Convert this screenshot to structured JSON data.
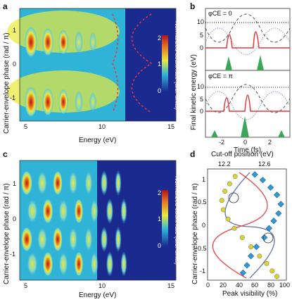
{
  "panels": {
    "a": {
      "letter": "a",
      "cbar_label": "Normalized count rate (arb. units)",
      "cbar_ticks": [
        "0",
        "1",
        "2"
      ],
      "xlabel": "Energy (eV)",
      "ylabel": "Carrier-envelope phase (rad / π)",
      "xticks": [
        "5",
        "10",
        "15"
      ],
      "yticks": [
        "1",
        "0",
        "-1"
      ]
    },
    "b": {
      "letter": "b",
      "ylabel": "Final kinetic energy (eV)",
      "xlabel": "Time (fs)",
      "xticks": [
        "-2",
        "0",
        "2"
      ],
      "yticks_top": [
        "10",
        "5",
        "0"
      ],
      "yticks_bottom": [
        "10",
        "5",
        "0"
      ],
      "phi_top": "φCE = 0",
      "phi_bottom": "φCE = π"
    },
    "c": {
      "letter": "c",
      "cbar_label": "Normalized count rate (arb. units)",
      "cbar_ticks": [
        "0",
        "1",
        "2"
      ],
      "xlabel": "Energy (eV)",
      "ylabel": "Carrier-envelope phase (rad / π)",
      "xticks": [
        "5",
        "10",
        "15"
      ],
      "yticks": [
        "1",
        "0",
        "-1"
      ]
    },
    "d": {
      "letter": "d",
      "top_xlabel": "Cut-off position (eV)",
      "top_xticks": [
        "12.2",
        "12.6"
      ],
      "xlabel": "Peak visibility (%)",
      "ylabel": "Carrier-envelope phase (rad / π)",
      "xticks": [
        "0",
        "20",
        "40",
        "60",
        "80",
        "100"
      ],
      "yticks": [
        "1",
        "0.5",
        "0",
        "-0.5",
        "-1"
      ]
    }
  },
  "colors": {
    "map_low": "#1b2a8f",
    "map_mid": "#2fb3d6",
    "map_yellow": "#e9e93a",
    "map_high": "#b3121a",
    "dashed_red": "#e3393a",
    "green": "#3ea65a",
    "diamond": "#2d9bd6",
    "circle": "#d8d33a"
  },
  "chart_data": [
    {
      "type": "heatmap",
      "panel": "a",
      "xlabel": "Energy (eV)",
      "ylabel": "Carrier-envelope phase (rad / π)",
      "xlim": [
        4,
        15
      ],
      "ylim": [
        -1.6,
        1.6
      ],
      "colorbar": {
        "label": "Normalized count rate (arb. units)",
        "range": [
          0,
          2
        ]
      }
    },
    {
      "type": "line",
      "panel": "b",
      "xlabel": "Time (fs)",
      "ylabel": "Final kinetic energy (eV)",
      "xlim": [
        -3.5,
        3.5
      ],
      "ylim": [
        -2,
        12
      ]
    },
    {
      "type": "heatmap",
      "panel": "c",
      "xlabel": "Energy (eV)",
      "ylabel": "Carrier-envelope phase (rad / π)",
      "xlim": [
        4,
        15
      ],
      "ylim": [
        -1.6,
        1.6
      ],
      "colorbar": {
        "label": "Normalized count rate (arb. units)",
        "range": [
          0,
          2
        ]
      }
    },
    {
      "type": "scatter",
      "panel": "d",
      "xlabel": "Peak visibility (%)",
      "ylabel": "Carrier-envelope phase (rad / π)",
      "xlim": [
        0,
        100
      ],
      "ylim": [
        -1.5,
        1.5
      ],
      "series": [
        {
          "values": [
            [
              60,
              1.35
            ],
            [
              70,
              1.2
            ],
            [
              80,
              1.0
            ],
            [
              88,
              0.8
            ],
            [
              93,
              0.55
            ],
            [
              90,
              0.3
            ],
            [
              84,
              0.1
            ],
            [
              78,
              -0.1
            ],
            [
              72,
              -0.35
            ],
            [
              62,
              -0.6
            ],
            [
              55,
              -0.85
            ],
            [
              50,
              -1.1
            ],
            [
              45,
              -1.3
            ]
          ]
        },
        {
          "values": [
            [
              35,
              1.3
            ],
            [
              28,
              1.1
            ],
            [
              22,
              0.9
            ],
            [
              18,
              0.65
            ],
            [
              20,
              0.4
            ],
            [
              26,
              0.15
            ],
            [
              34,
              -0.1
            ],
            [
              44,
              -0.35
            ],
            [
              55,
              -0.6
            ],
            [
              66,
              -0.85
            ],
            [
              75,
              -1.05
            ],
            [
              82,
              -1.25
            ],
            [
              88,
              -1.4
            ]
          ]
        }
      ]
    }
  ]
}
